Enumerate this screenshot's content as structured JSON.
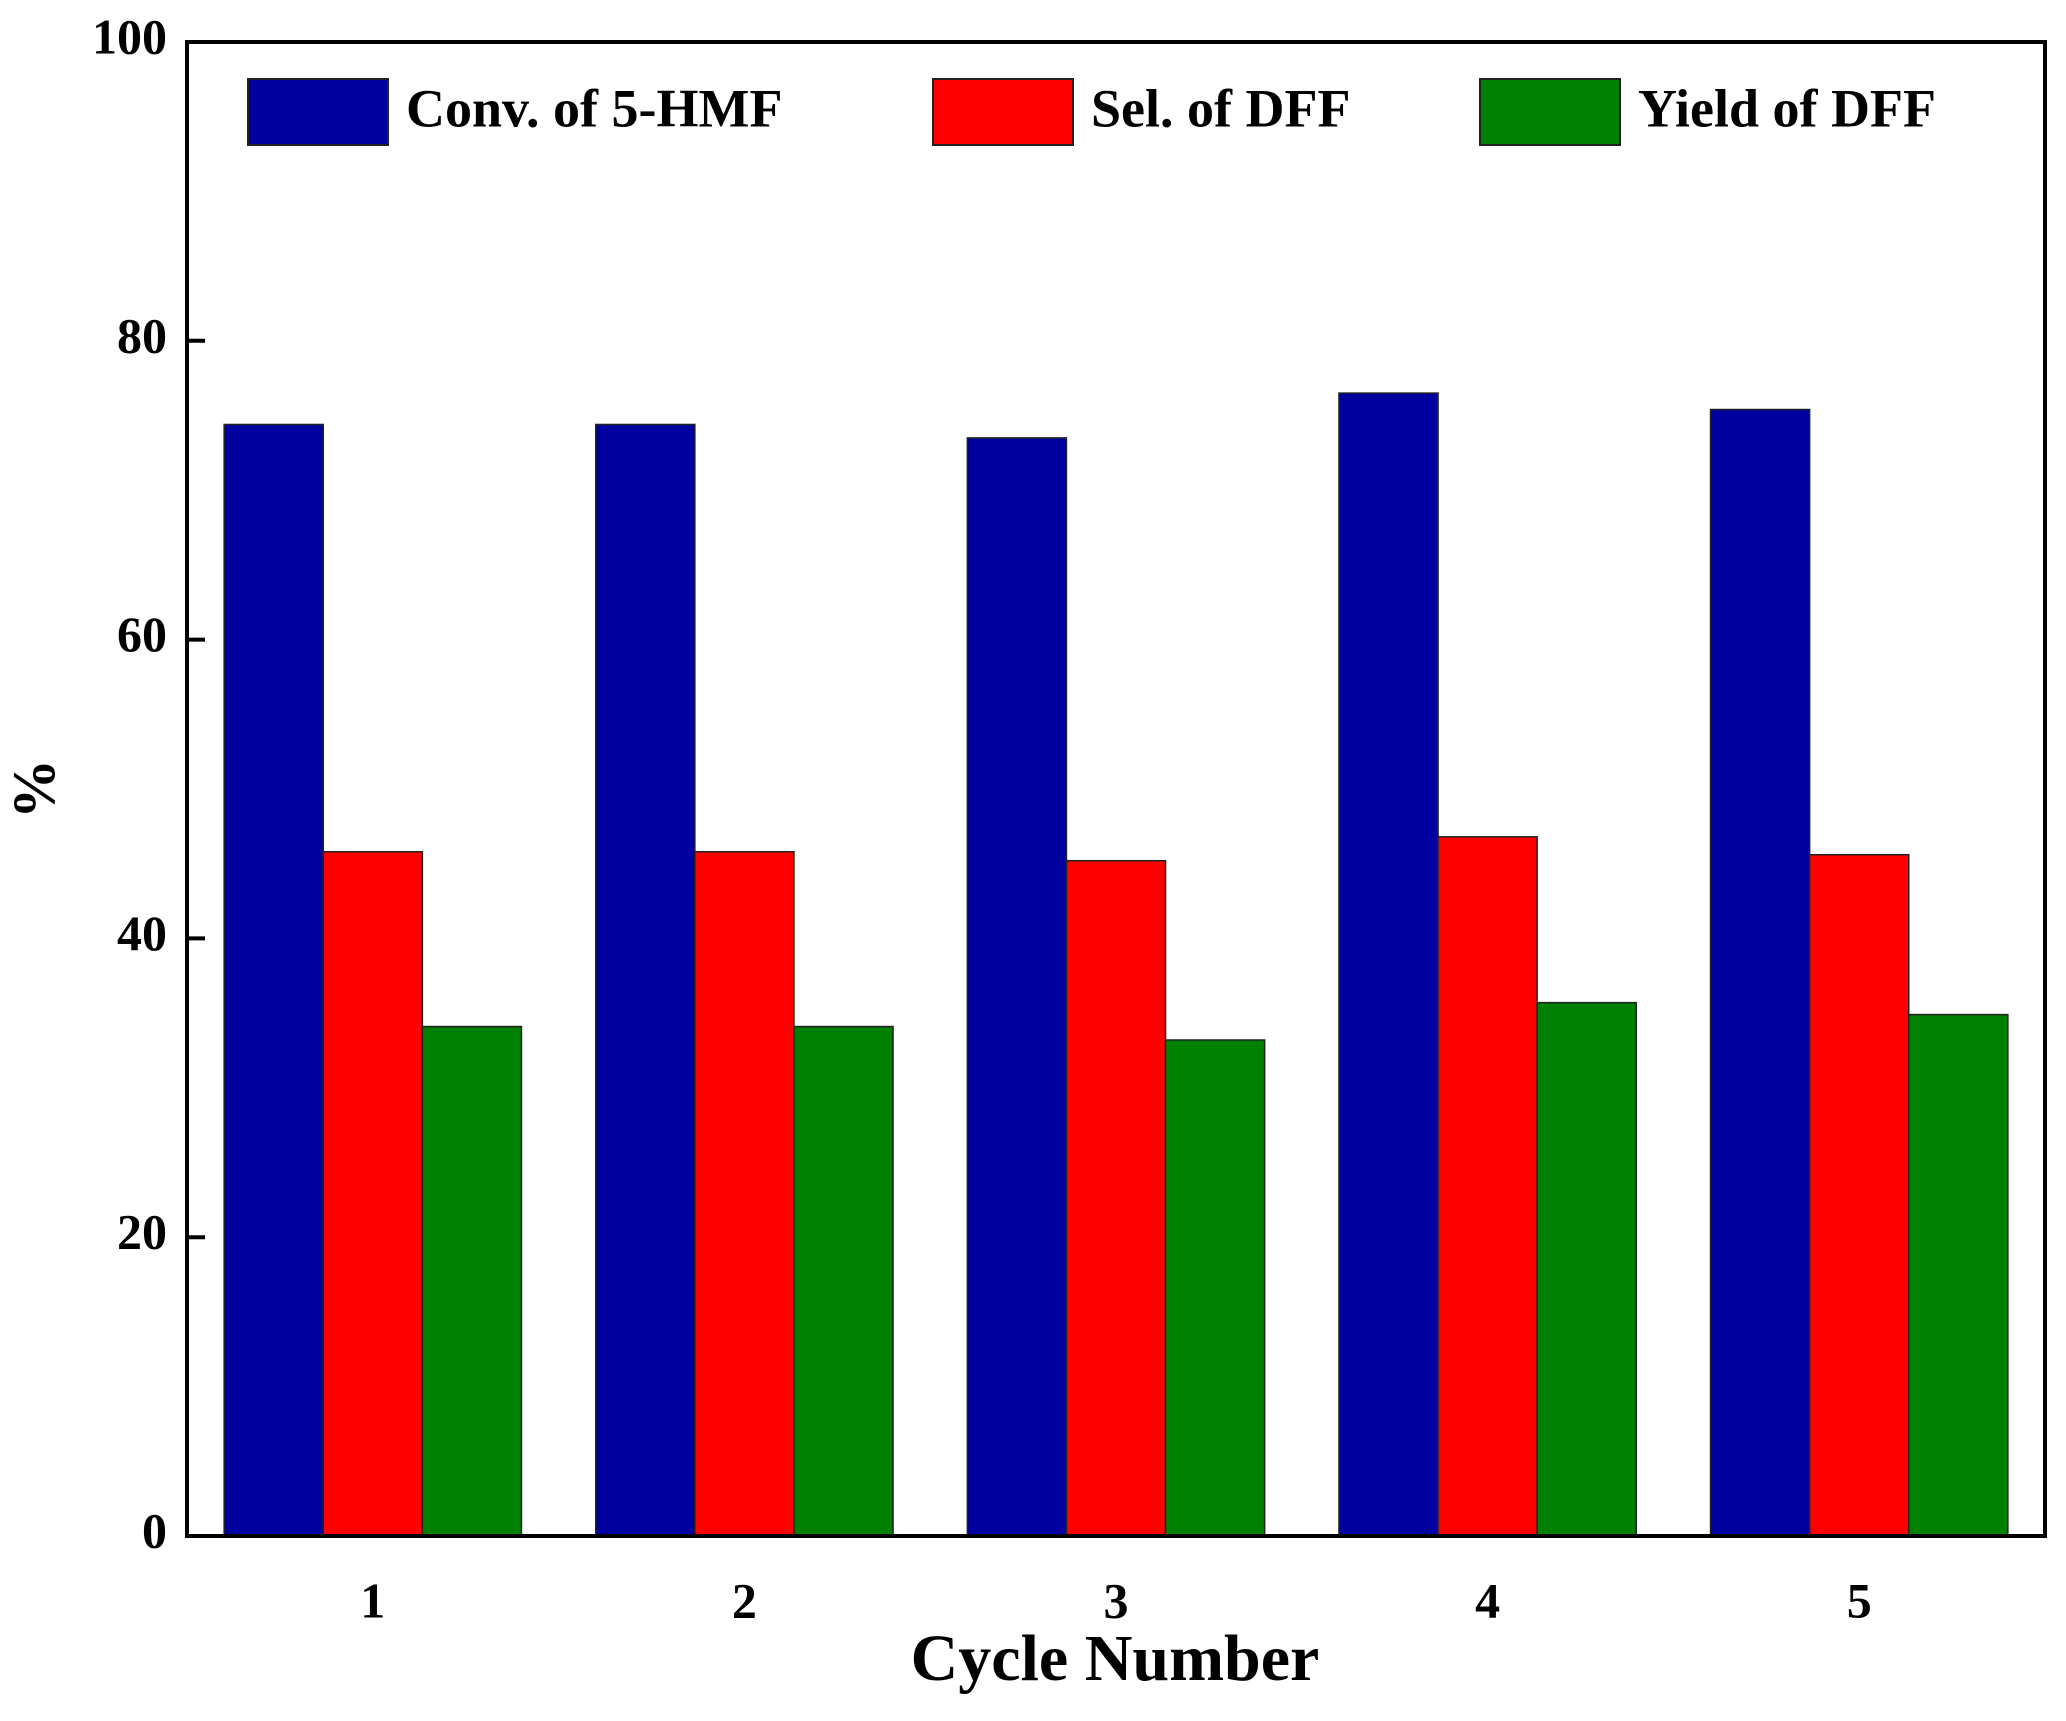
{
  "chart_data": {
    "type": "bar",
    "x_label": "Cycle Number",
    "y_label": "%",
    "categories": [
      "1",
      "2",
      "3",
      "4",
      "5"
    ],
    "series": [
      {
        "name": "Conv. of 5-HMF",
        "color": "#0000a0",
        "values": [
          74.4,
          74.4,
          73.5,
          76.5,
          75.4
        ]
      },
      {
        "name": "Sel. of DFF",
        "color": "#ff0000",
        "values": [
          45.8,
          45.8,
          45.2,
          46.8,
          45.6
        ]
      },
      {
        "name": "Yield of DFF",
        "color": "#008000",
        "values": [
          34.1,
          34.1,
          33.2,
          35.7,
          34.9
        ]
      }
    ],
    "ylim": [
      0,
      100
    ],
    "yticks": [
      0,
      20,
      40,
      60,
      80,
      100
    ],
    "legend": "top"
  }
}
